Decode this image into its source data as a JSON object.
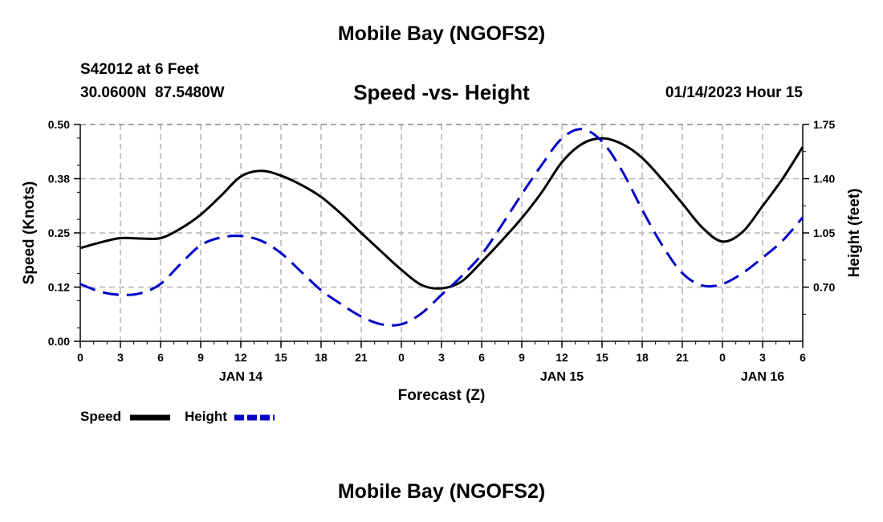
{
  "chart_data": {
    "type": "line",
    "title": "Mobile Bay (NGOFS2)",
    "footer_title": "Mobile Bay (NGOFS2)",
    "station": "S42012 at 6 Feet",
    "coords": "30.0600N  87.5480W",
    "subtitle": "Speed -vs- Height",
    "datetime": "01/14/2023 Hour 15",
    "xlabel": "Forecast (Z)",
    "ylabel_left": "Speed (Knots)",
    "ylabel_right": "Height (feet)",
    "x_range_hours": [
      0,
      54
    ],
    "x_ticks": [
      {
        "h": 0,
        "label": "0"
      },
      {
        "h": 3,
        "label": "3"
      },
      {
        "h": 6,
        "label": "6"
      },
      {
        "h": 9,
        "label": "9"
      },
      {
        "h": 12,
        "label": "12"
      },
      {
        "h": 15,
        "label": "15"
      },
      {
        "h": 18,
        "label": "18"
      },
      {
        "h": 21,
        "label": "21"
      },
      {
        "h": 24,
        "label": "0"
      },
      {
        "h": 27,
        "label": "3"
      },
      {
        "h": 30,
        "label": "6"
      },
      {
        "h": 33,
        "label": "9"
      },
      {
        "h": 36,
        "label": "12"
      },
      {
        "h": 39,
        "label": "15"
      },
      {
        "h": 42,
        "label": "18"
      },
      {
        "h": 45,
        "label": "21"
      },
      {
        "h": 48,
        "label": "0"
      },
      {
        "h": 51,
        "label": "3"
      },
      {
        "h": 54,
        "label": "6"
      }
    ],
    "date_labels": [
      {
        "h": 12,
        "label": "JAN 14"
      },
      {
        "h": 36,
        "label": "JAN 15"
      },
      {
        "h": 51,
        "label": "JAN 16"
      }
    ],
    "y_left_range": [
      0,
      0.5
    ],
    "y_left_ticks": [
      "0.00",
      "0.12",
      "0.25",
      "0.38",
      "0.50"
    ],
    "y_right_range": [
      0.35,
      1.75
    ],
    "y_right_ticks": [
      "0.70",
      "1.05",
      "1.40",
      "1.75"
    ],
    "grid": true,
    "legend_position": "bottom-left",
    "series": [
      {
        "name": "Speed",
        "axis": "left",
        "color": "#000000",
        "style": "solid",
        "x": [
          0,
          1.5,
          3,
          4.5,
          6,
          7.5,
          9,
          10.5,
          12,
          13.5,
          15,
          16.5,
          18,
          19.5,
          21,
          22.5,
          24,
          25.5,
          27,
          28.5,
          30,
          31.5,
          33,
          34.5,
          36,
          37.5,
          39,
          40.5,
          42,
          43.5,
          45,
          46.5,
          48,
          49.5,
          51,
          52.5,
          54
        ],
        "values": [
          0.215,
          0.228,
          0.238,
          0.237,
          0.238,
          0.26,
          0.292,
          0.335,
          0.38,
          0.393,
          0.382,
          0.361,
          0.333,
          0.294,
          0.25,
          0.207,
          0.165,
          0.13,
          0.122,
          0.138,
          0.183,
          0.232,
          0.284,
          0.344,
          0.413,
          0.455,
          0.468,
          0.455,
          0.423,
          0.373,
          0.318,
          0.262,
          0.23,
          0.252,
          0.312,
          0.375,
          0.448
        ]
      },
      {
        "name": "Height",
        "axis": "right",
        "color": "#0000c8",
        "style": "dashed",
        "x": [
          0,
          1.5,
          3,
          4.5,
          6,
          7.5,
          9,
          10.5,
          12,
          13.5,
          15,
          16.5,
          18,
          19.5,
          21,
          22.5,
          24,
          25.5,
          27,
          28.5,
          30,
          31.5,
          33,
          34.5,
          36,
          37.5,
          39,
          40.5,
          42,
          43.5,
          45,
          46.5,
          48,
          49.5,
          51,
          52.5,
          54
        ],
        "values": [
          0.72,
          0.67,
          0.65,
          0.66,
          0.72,
          0.85,
          0.97,
          1.02,
          1.03,
          1.0,
          0.92,
          0.8,
          0.68,
          0.59,
          0.51,
          0.46,
          0.46,
          0.53,
          0.65,
          0.77,
          0.91,
          1.1,
          1.3,
          1.49,
          1.66,
          1.72,
          1.64,
          1.45,
          1.2,
          0.97,
          0.79,
          0.71,
          0.72,
          0.79,
          0.89,
          1.0,
          1.15
        ]
      }
    ]
  }
}
